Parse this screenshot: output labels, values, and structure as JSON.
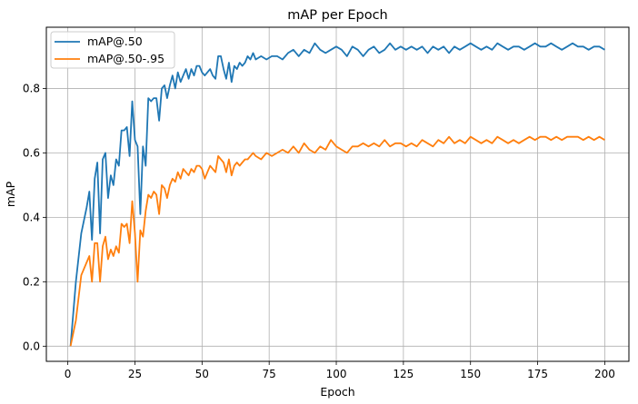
{
  "chart_data": {
    "type": "line",
    "title": "mAP per Epoch",
    "xlabel": "Epoch",
    "ylabel": "mAP",
    "xlim": [
      -8,
      209
    ],
    "ylim": [
      -0.047,
      0.99
    ],
    "xticks": [
      0,
      25,
      50,
      75,
      100,
      125,
      150,
      175,
      200
    ],
    "yticks": [
      0.0,
      0.2,
      0.4,
      0.6,
      0.8
    ],
    "grid": true,
    "legend_position": "top-left",
    "series": [
      {
        "name": "mAP@.50",
        "color": "#1f77b4",
        "x": [
          1,
          3,
          5,
          7,
          8,
          9,
          10,
          11,
          12,
          13,
          14,
          15,
          16,
          17,
          18,
          19,
          20,
          21,
          22,
          23,
          24,
          25,
          26,
          27,
          28,
          29,
          30,
          31,
          32,
          33,
          34,
          35,
          36,
          37,
          38,
          39,
          40,
          41,
          42,
          43,
          44,
          45,
          46,
          47,
          48,
          49,
          50,
          51,
          52,
          53,
          54,
          55,
          56,
          57,
          58,
          59,
          60,
          61,
          62,
          63,
          64,
          65,
          66,
          67,
          68,
          69,
          70,
          72,
          74,
          76,
          78,
          80,
          82,
          84,
          86,
          88,
          90,
          92,
          94,
          96,
          98,
          100,
          102,
          104,
          106,
          108,
          110,
          112,
          114,
          116,
          118,
          120,
          122,
          124,
          126,
          128,
          130,
          132,
          134,
          136,
          138,
          140,
          142,
          144,
          146,
          148,
          150,
          152,
          154,
          156,
          158,
          160,
          162,
          164,
          166,
          168,
          170,
          172,
          174,
          176,
          178,
          180,
          182,
          184,
          186,
          188,
          190,
          192,
          194,
          196,
          198,
          200
        ],
        "y": [
          0.0,
          0.2,
          0.35,
          0.43,
          0.48,
          0.33,
          0.52,
          0.57,
          0.35,
          0.58,
          0.6,
          0.46,
          0.53,
          0.5,
          0.58,
          0.56,
          0.67,
          0.67,
          0.68,
          0.59,
          0.76,
          0.64,
          0.62,
          0.41,
          0.62,
          0.56,
          0.77,
          0.76,
          0.77,
          0.77,
          0.7,
          0.8,
          0.81,
          0.77,
          0.81,
          0.84,
          0.8,
          0.85,
          0.82,
          0.84,
          0.86,
          0.83,
          0.86,
          0.84,
          0.87,
          0.87,
          0.85,
          0.84,
          0.85,
          0.86,
          0.84,
          0.83,
          0.9,
          0.9,
          0.86,
          0.83,
          0.88,
          0.82,
          0.87,
          0.86,
          0.88,
          0.87,
          0.88,
          0.9,
          0.89,
          0.91,
          0.89,
          0.9,
          0.89,
          0.9,
          0.9,
          0.89,
          0.91,
          0.92,
          0.9,
          0.92,
          0.91,
          0.94,
          0.92,
          0.91,
          0.92,
          0.93,
          0.92,
          0.9,
          0.93,
          0.92,
          0.9,
          0.92,
          0.93,
          0.91,
          0.92,
          0.94,
          0.92,
          0.93,
          0.92,
          0.93,
          0.92,
          0.93,
          0.91,
          0.93,
          0.92,
          0.93,
          0.91,
          0.93,
          0.92,
          0.93,
          0.94,
          0.93,
          0.92,
          0.93,
          0.92,
          0.94,
          0.93,
          0.92,
          0.93,
          0.93,
          0.92,
          0.93,
          0.94,
          0.93,
          0.93,
          0.94,
          0.93,
          0.92,
          0.93,
          0.94,
          0.93,
          0.93,
          0.92,
          0.93,
          0.93,
          0.92
        ]
      },
      {
        "name": "mAP@.50-.95",
        "color": "#ff7f0e",
        "x": [
          1,
          3,
          5,
          7,
          8,
          9,
          10,
          11,
          12,
          13,
          14,
          15,
          16,
          17,
          18,
          19,
          20,
          21,
          22,
          23,
          24,
          25,
          26,
          27,
          28,
          29,
          30,
          31,
          32,
          33,
          34,
          35,
          36,
          37,
          38,
          39,
          40,
          41,
          42,
          43,
          44,
          45,
          46,
          47,
          48,
          49,
          50,
          51,
          52,
          53,
          54,
          55,
          56,
          57,
          58,
          59,
          60,
          61,
          62,
          63,
          64,
          65,
          66,
          67,
          68,
          69,
          70,
          72,
          74,
          76,
          78,
          80,
          82,
          84,
          86,
          88,
          90,
          92,
          94,
          96,
          98,
          100,
          102,
          104,
          106,
          108,
          110,
          112,
          114,
          116,
          118,
          120,
          122,
          124,
          126,
          128,
          130,
          132,
          134,
          136,
          138,
          140,
          142,
          144,
          146,
          148,
          150,
          152,
          154,
          156,
          158,
          160,
          162,
          164,
          166,
          168,
          170,
          172,
          174,
          176,
          178,
          180,
          182,
          184,
          186,
          188,
          190,
          192,
          194,
          196,
          198,
          200
        ],
        "y": [
          0.0,
          0.08,
          0.22,
          0.26,
          0.28,
          0.2,
          0.32,
          0.32,
          0.2,
          0.31,
          0.34,
          0.27,
          0.3,
          0.28,
          0.31,
          0.29,
          0.38,
          0.37,
          0.38,
          0.32,
          0.45,
          0.35,
          0.2,
          0.36,
          0.34,
          0.42,
          0.47,
          0.46,
          0.48,
          0.47,
          0.41,
          0.5,
          0.49,
          0.46,
          0.5,
          0.52,
          0.51,
          0.54,
          0.52,
          0.55,
          0.54,
          0.53,
          0.55,
          0.54,
          0.56,
          0.56,
          0.55,
          0.52,
          0.54,
          0.56,
          0.55,
          0.54,
          0.59,
          0.58,
          0.57,
          0.54,
          0.58,
          0.53,
          0.56,
          0.57,
          0.56,
          0.57,
          0.58,
          0.58,
          0.59,
          0.6,
          0.59,
          0.58,
          0.6,
          0.59,
          0.6,
          0.61,
          0.6,
          0.62,
          0.6,
          0.63,
          0.61,
          0.6,
          0.62,
          0.61,
          0.64,
          0.62,
          0.61,
          0.6,
          0.62,
          0.62,
          0.63,
          0.62,
          0.63,
          0.62,
          0.64,
          0.62,
          0.63,
          0.63,
          0.62,
          0.63,
          0.62,
          0.64,
          0.63,
          0.62,
          0.64,
          0.63,
          0.65,
          0.63,
          0.64,
          0.63,
          0.65,
          0.64,
          0.63,
          0.64,
          0.63,
          0.65,
          0.64,
          0.63,
          0.64,
          0.63,
          0.64,
          0.65,
          0.64,
          0.65,
          0.65,
          0.64,
          0.65,
          0.64,
          0.65,
          0.65,
          0.65,
          0.64,
          0.65,
          0.64,
          0.65,
          0.64
        ]
      }
    ]
  }
}
